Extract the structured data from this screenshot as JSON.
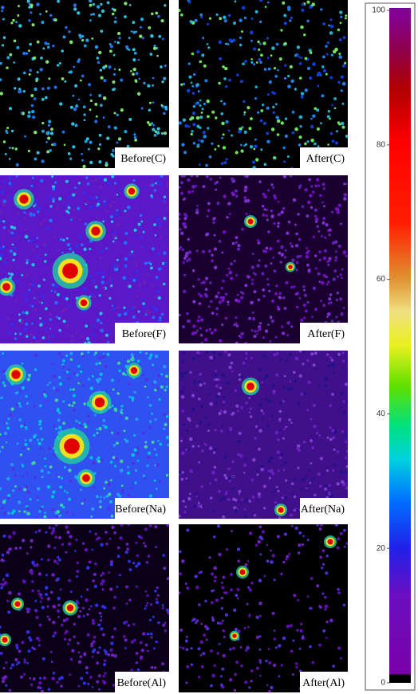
{
  "panels": [
    {
      "label": "Before(C)"
    },
    {
      "label": "After(C)"
    },
    {
      "label": "Before(F)"
    },
    {
      "label": "After(F)"
    },
    {
      "label": "Before(Na)"
    },
    {
      "label": "After(Na)"
    },
    {
      "label": "Before(Al)"
    },
    {
      "label": "After(Al)"
    }
  ],
  "colorbar": {
    "range": [
      0,
      100
    ],
    "ticks": [
      100,
      80,
      60,
      40,
      20,
      0
    ]
  }
}
